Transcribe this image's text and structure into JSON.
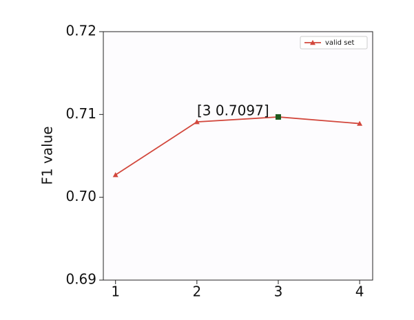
{
  "chart_data": {
    "type": "line",
    "ylabel": "F1 value",
    "x": [
      1,
      2,
      3,
      4
    ],
    "series": [
      {
        "name": "valid set",
        "color": "#d2473c",
        "values": [
          0.7027,
          0.7091,
          0.7097,
          0.7089
        ]
      }
    ],
    "xlim": [
      0.85,
      4.16
    ],
    "xticks": [
      1,
      2,
      3,
      4
    ],
    "ylim": [
      0.69,
      0.72
    ],
    "yticks": [
      0.69,
      {
        "value": 0.7,
        "label": "0.70"
      },
      0.71,
      0.72
    ],
    "legend": "upper right",
    "annotation": {
      "text": "[3 0.7097]",
      "x": 3,
      "y": 0.7097,
      "color": "#1e5a1e"
    }
  }
}
